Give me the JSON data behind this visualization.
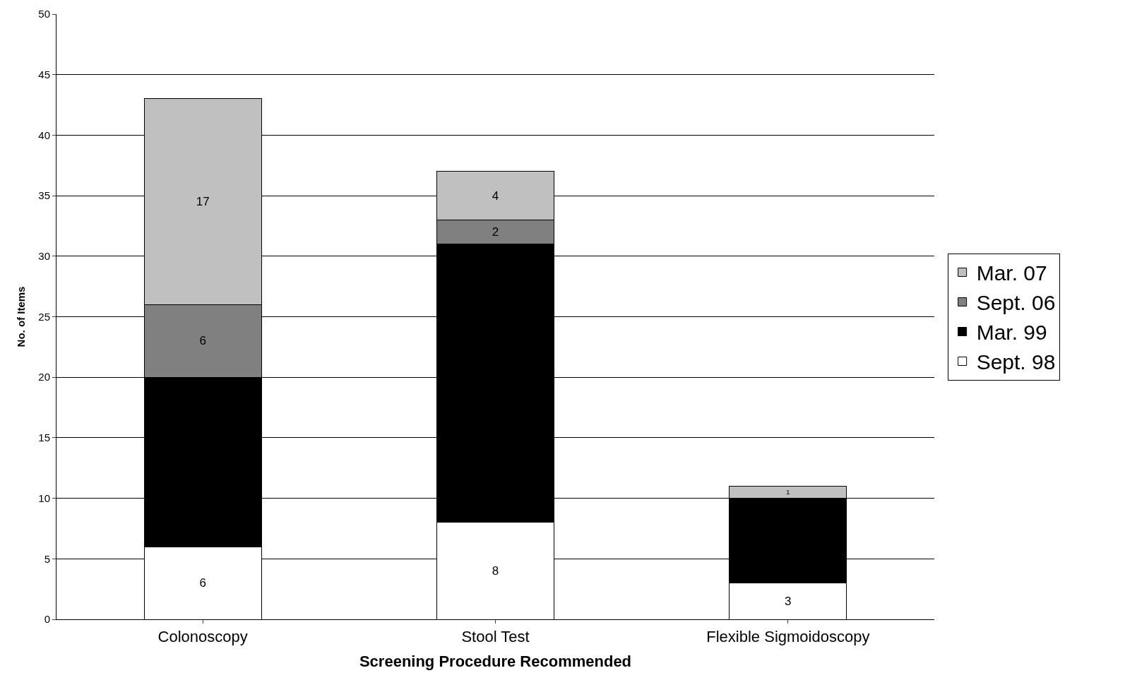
{
  "chart_data": {
    "type": "bar",
    "stacked": true,
    "xlabel": "Screening Procedure Recommended",
    "ylabel": "No. of Items",
    "categories": [
      "Colonoscopy",
      "Stool Test",
      "Flexible Sigmoidoscopy"
    ],
    "series": [
      {
        "name": "Sept. 98",
        "color": "#ffffff",
        "values": [
          6,
          8,
          3
        ],
        "value_labels": [
          "6",
          "8",
          "3"
        ]
      },
      {
        "name": "Mar. 99",
        "color": "#000000",
        "values": [
          14,
          23,
          7
        ],
        "value_labels": [
          null,
          null,
          null
        ]
      },
      {
        "name": "Sept. 06",
        "color": "#808080",
        "values": [
          6,
          2,
          0
        ],
        "value_labels": [
          "6",
          "2",
          null
        ]
      },
      {
        "name": "Mar. 07",
        "color": "#c0c0c0",
        "values": [
          17,
          4,
          1
        ],
        "value_labels": [
          "17",
          "4",
          "1"
        ]
      }
    ],
    "ylim": [
      0,
      50
    ],
    "yticks": [
      0,
      5,
      10,
      15,
      20,
      25,
      30,
      35,
      40,
      45,
      50
    ],
    "grid": "y",
    "legend": "right"
  }
}
